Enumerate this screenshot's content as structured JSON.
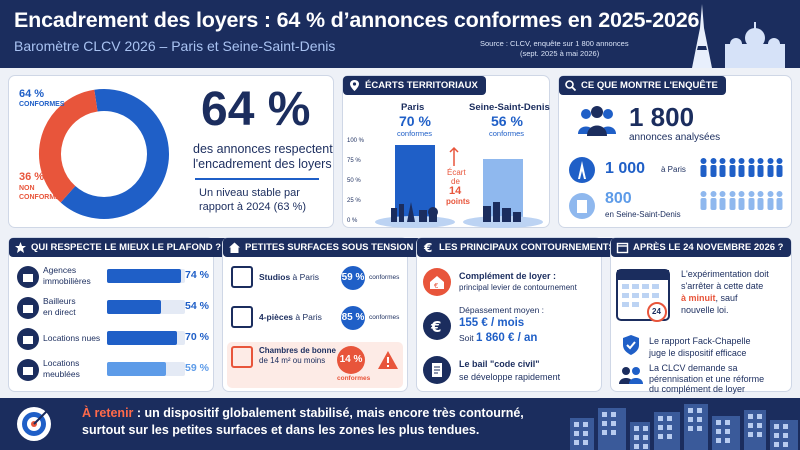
{
  "header": {
    "title": "Encadrement des loyers : 64 % d’annonces conformes en 2025-2026",
    "subtitle": "Baromètre CLCV 2026 – Paris et Seine-Saint-Denis",
    "source_line1": "Source : CLCV, enquête sur 1 800 annonces",
    "source_line2": "(sept. 2025 à mai 2026)"
  },
  "conformity": {
    "conform_pct": "64 %",
    "conform_label": "CONFORMES",
    "nonconform_pct": "36 %",
    "nonconform_label1": "NON",
    "nonconform_label2": "CONFORMES",
    "big_pct": "64 %",
    "desc1": "des annonces respectent",
    "desc2": "l'encadrement des loyers",
    "stable1": "Un niveau stable par",
    "stable2": "rapport à 2024 (63 %)",
    "donut_fraction": 0.64,
    "color_conform": "#1f5fc7",
    "color_nonconform": "#e8553b"
  },
  "territorial": {
    "title": "ÉCARTS TERRITORIAUX",
    "paris_label": "Paris",
    "paris_pct": "70 %",
    "paris_sub": "conformes",
    "ssd_label": "Seine-Saint-Denis",
    "ssd_pct": "56 %",
    "ssd_sub": "conformes",
    "gap1": "Écart",
    "gap2": "de",
    "gap3": "14",
    "gap4": "points",
    "ticks": [
      "100 %",
      "75 %",
      "50 %",
      "25 %",
      "0 %"
    ]
  },
  "survey": {
    "title": "CE QUE MONTRE L'ENQUÊTE",
    "total": "1 800",
    "total_label": "annonces analysées",
    "paris_count": "1 000",
    "paris_label": "à Paris",
    "ssd_count": "800",
    "ssd_label": "en Seine-Saint-Denis"
  },
  "ceiling": {
    "title": "QUI RESPECTE LE MIEUX LE PLAFOND ?",
    "rows": [
      {
        "label1": "Agences",
        "label2": "immobilières",
        "pct": "74 %",
        "value": 0.74,
        "color": "#1f5fc7"
      },
      {
        "label1": "Bailleurs",
        "label2": "en direct",
        "pct": "54 %",
        "value": 0.54,
        "color": "#1f5fc7"
      },
      {
        "label1": "Locations nues",
        "label2": "",
        "pct": "70 %",
        "value": 0.7,
        "color": "#1f5fc7"
      },
      {
        "label1": "Locations",
        "label2": "meublées",
        "pct": "59 %",
        "value": 0.59,
        "color": "#5d9be8"
      }
    ]
  },
  "small": {
    "title": "PETITES SURFACES SOUS TENSION",
    "rows": [
      {
        "label_bold": "Studios",
        "label_rest": " à Paris",
        "pct": "59 %",
        "sub": "conformes"
      },
      {
        "label_bold": "4-pièces",
        "label_rest": " à Paris",
        "pct": "85 %",
        "sub": "conformes"
      },
      {
        "label_bold": "Chambres de bonne",
        "label_rest": "de 14 m² ou moins",
        "pct": "14 %",
        "sub": "conformes"
      }
    ]
  },
  "circumvent": {
    "title": "LES PRINCIPAUX CONTOURNEMENTS",
    "r1_bold": "Complément de loyer :",
    "r1_text": "principal levier de contournement",
    "r2_label": "Dépassement moyen :",
    "r2_month": "155 € / mois",
    "r2_year_prefix": "Soit ",
    "r2_year": "1 860 € / an",
    "r3_bold": "Le bail \"code civil\"",
    "r3_text": "se développe rapidement"
  },
  "after": {
    "title": "APRÈS LE 24 NOVEMBRE 2026 ?",
    "cal_day": "24",
    "l1": "L'expérimentation doit",
    "l2": "s'arrêter à cette date",
    "l3": "à minuit",
    "l3b": ", sauf",
    "l4": "nouvelle loi.",
    "r1a": "Le rapport Fack-Chapelle",
    "r1b": "juge le dispositif efficace",
    "r2a": "La CLCV demande sa",
    "r2b": "pérennisation et une réforme",
    "r2c": "du complément de loyer"
  },
  "footer": {
    "highlight": "À retenir",
    "line1": " : un dispositif globalement stabilisé, mais encore très contourné,",
    "line2": "surtout sur les petites surfaces et dans les zones les plus tendues."
  },
  "icons": [
    "chart-icon",
    "map-pin-icon",
    "search-icon",
    "star-icon",
    "house-icon",
    "euro-icon",
    "calendar-icon",
    "target-icon",
    "people-icon",
    "eiffel-icon",
    "building-icon",
    "briefcase-icon",
    "user-icon",
    "sofa-icon",
    "warning-icon",
    "shield-icon",
    "document-icon"
  ]
}
